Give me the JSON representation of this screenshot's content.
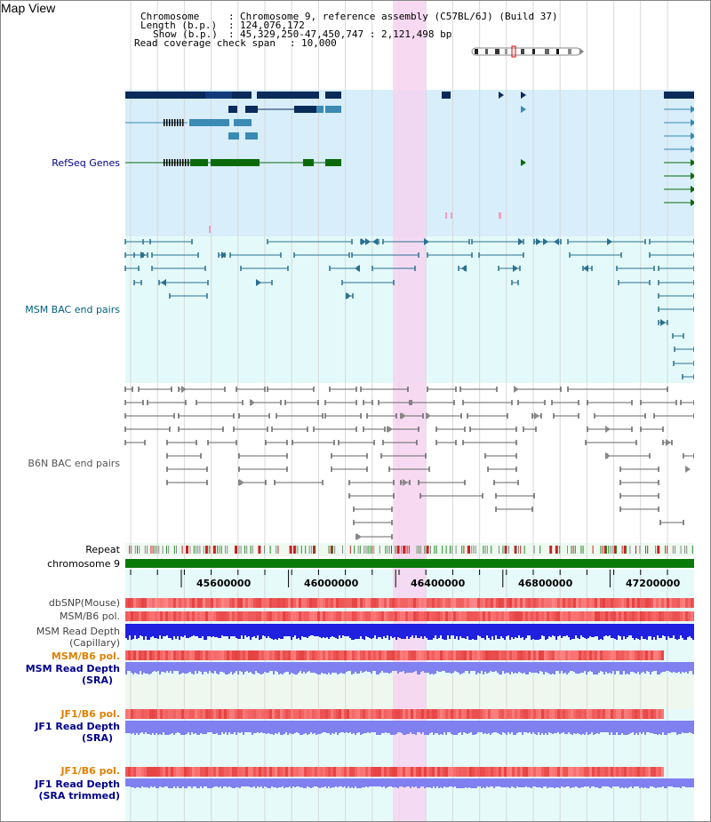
{
  "title": "Map View",
  "header": {
    "chromosome_key": "Chromosome",
    "chromosome_val": "Chromosome 9, reference assembly (C57BL/6J) (Build 37)",
    "length_key": "Length (b.p.)",
    "length_val": "124,076,172",
    "show_key": "Show (b.p.)",
    "show_val": "45,329,250-47,450,747 : 2,121,498 bp",
    "coverage_key": "Read coverage check span",
    "coverage_val": "10,000"
  },
  "tracks": {
    "refseq": "RefSeq Genes",
    "msm_bac": "MSM BAC end pairs",
    "b6n_bac": "B6N BAC end pairs",
    "repeat": "Repeat",
    "chromosome": "chromosome 9",
    "dbsnp": "dbSNP(Mouse)",
    "msm_b6_pol_1": "MSM/B6 pol.",
    "msm_depth_cap_1": "MSM Read Depth",
    "msm_depth_cap_2": "(Capillary)",
    "msm_b6_pol_2": "MSM/B6 pol.",
    "msm_depth_sra_1": "MSM Read Depth",
    "msm_depth_sra_2": "(SRA)",
    "jf1_b6_pol_1": "JF1/B6 pol.",
    "jf1_depth_sra_1": "JF1 Read Depth",
    "jf1_depth_sra_2": "(SRA)",
    "jf1_b6_pol_2": "JF1/B6 pol.",
    "jf1_depth_trim_1": "JF1 Read Depth",
    "jf1_depth_trim_2": "(SRA trimmed)"
  },
  "ticks": [
    "45600000",
    "46000000",
    "46400000",
    "46800000",
    "47200000"
  ],
  "colors": {
    "refseq_bg": "#d8eefa",
    "msm_bac_bg": "#e4fafa",
    "highlight": "#f6d3f0",
    "gene_dark": "#0a2a5a",
    "gene_mid": "#3a8ab4",
    "gene_green": "#0a6a0a",
    "msm_line": "#2a7090",
    "b6n_line": "#666666",
    "snp_red": "#f04040",
    "depth_blue": "#2020e0",
    "depth_light": "#8080f0",
    "chrom_green": "#0a7a0a",
    "label_blue": "#00008b",
    "label_teal": "#006080",
    "label_orange": "#e08000"
  }
}
